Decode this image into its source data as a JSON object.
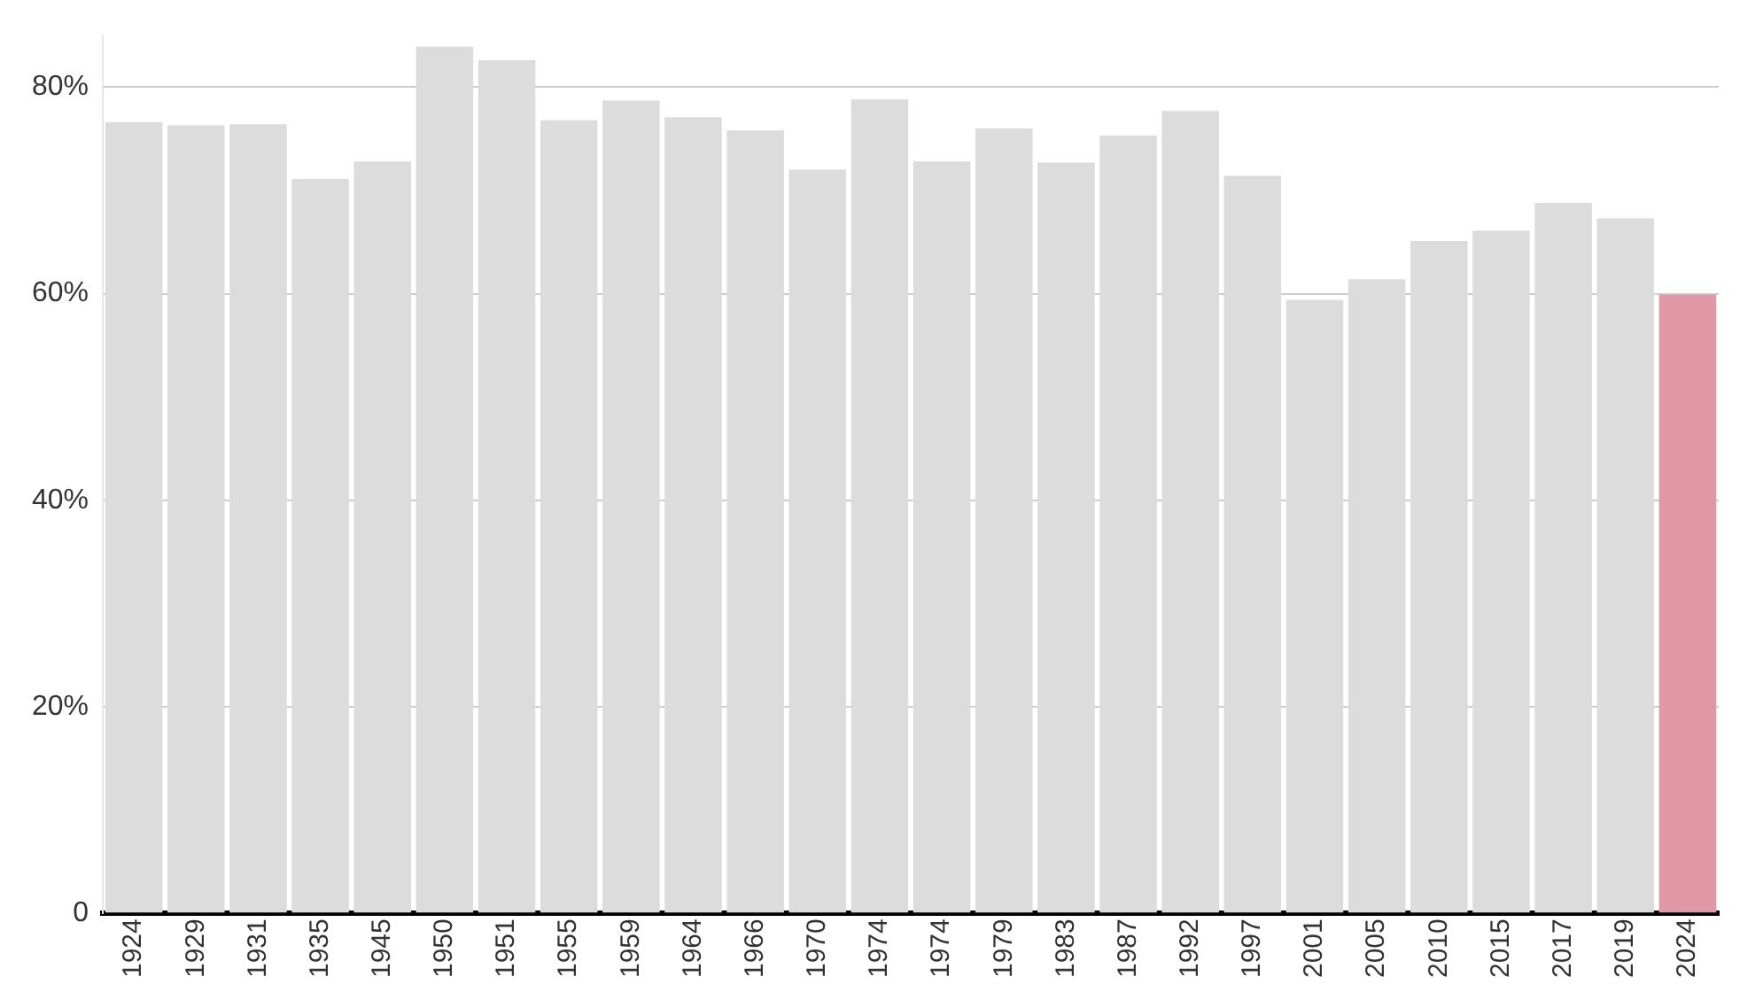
{
  "chart_data": {
    "type": "bar",
    "categories": [
      "1924",
      "1929",
      "1931",
      "1935",
      "1945",
      "1950",
      "1951",
      "1955",
      "1959",
      "1964",
      "1966",
      "1970",
      "1974",
      "1974",
      "1979",
      "1983",
      "1987",
      "1992",
      "1997",
      "2001",
      "2005",
      "2010",
      "2015",
      "2017",
      "2019",
      "2024"
    ],
    "values": [
      76.6,
      76.3,
      76.4,
      71.1,
      72.8,
      83.9,
      82.6,
      76.8,
      78.7,
      77.1,
      75.8,
      72.0,
      78.8,
      72.8,
      76.0,
      72.7,
      75.3,
      77.7,
      71.4,
      59.4,
      61.4,
      65.1,
      66.1,
      68.8,
      67.3,
      59.9
    ],
    "colors": [
      "#dcdcdc",
      "#dcdcdc",
      "#dcdcdc",
      "#dcdcdc",
      "#dcdcdc",
      "#dcdcdc",
      "#dcdcdc",
      "#dcdcdc",
      "#dcdcdc",
      "#dcdcdc",
      "#dcdcdc",
      "#dcdcdc",
      "#dcdcdc",
      "#dcdcdc",
      "#dcdcdc",
      "#dcdcdc",
      "#dcdcdc",
      "#dcdcdc",
      "#dcdcdc",
      "#dcdcdc",
      "#dcdcdc",
      "#dcdcdc",
      "#dcdcdc",
      "#dcdcdc",
      "#dcdcdc",
      "#e097a6"
    ],
    "yticks": [
      {
        "value": 0,
        "label": "0"
      },
      {
        "value": 20,
        "label": "20%"
      },
      {
        "value": 40,
        "label": "40%"
      },
      {
        "value": 60,
        "label": "60%"
      },
      {
        "value": 80,
        "label": "80%"
      }
    ],
    "ylim": [
      0,
      85
    ],
    "grid": "y"
  }
}
